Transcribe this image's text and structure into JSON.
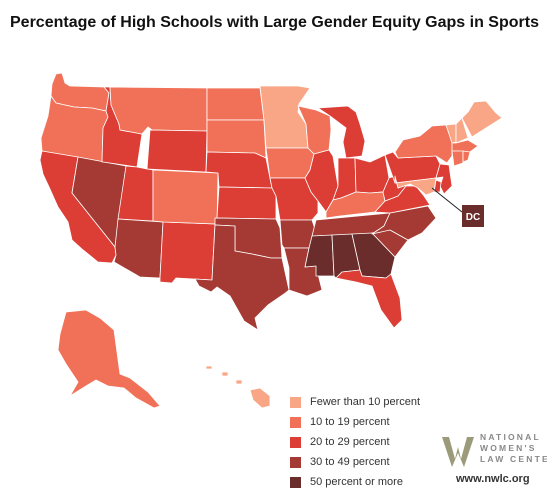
{
  "title": "Percentage of High Schools with Large Gender Equity Gaps in Sports",
  "legend": [
    {
      "key": "c1",
      "label": "Fewer than 10 percent",
      "color": "#f9a687"
    },
    {
      "key": "c2",
      "label": "10 to 19 percent",
      "color": "#f07158"
    },
    {
      "key": "c3",
      "label": "20 to 29 percent",
      "color": "#dc3d35"
    },
    {
      "key": "c4",
      "label": "30 to 49 percent",
      "color": "#a53a34"
    },
    {
      "key": "c5",
      "label": "50 percent or more",
      "color": "#6b2d2b"
    }
  ],
  "dc": {
    "label": "DC",
    "category": "c5"
  },
  "states": {
    "WA": "c2",
    "OR": "c2",
    "CA": "c3",
    "NV": "c4",
    "ID": "c3",
    "MT": "c2",
    "WY": "c3",
    "UT": "c3",
    "AZ": "c4",
    "NM": "c3",
    "CO": "c2",
    "ND": "c2",
    "SD": "c2",
    "NE": "c3",
    "KS": "c3",
    "OK": "c4",
    "TX": "c4",
    "MN": "c1",
    "IA": "c2",
    "MO": "c3",
    "AR": "c4",
    "LA": "c4",
    "WI": "c2",
    "IL": "c3",
    "MI": "c3",
    "IN": "c3",
    "OH": "c3",
    "KY": "c2",
    "TN": "c4",
    "MS": "c5",
    "AL": "c5",
    "GA": "c5",
    "FL": "c3",
    "SC": "c4",
    "NC": "c4",
    "VA": "c3",
    "WV": "c3",
    "PA": "c3",
    "NY": "c2",
    "VT": "c1",
    "NH": "c1",
    "ME": "c1",
    "MA": "c2",
    "CT": "c2",
    "RI": "c2",
    "NJ": "c3",
    "DE": "c3",
    "MD": "c1",
    "AK": "c2",
    "HI": "c1"
  },
  "logo": {
    "lines": [
      "NATIONAL",
      "WOMEN'S",
      "LAW CENTER"
    ],
    "url": "www.nwlc.org"
  }
}
